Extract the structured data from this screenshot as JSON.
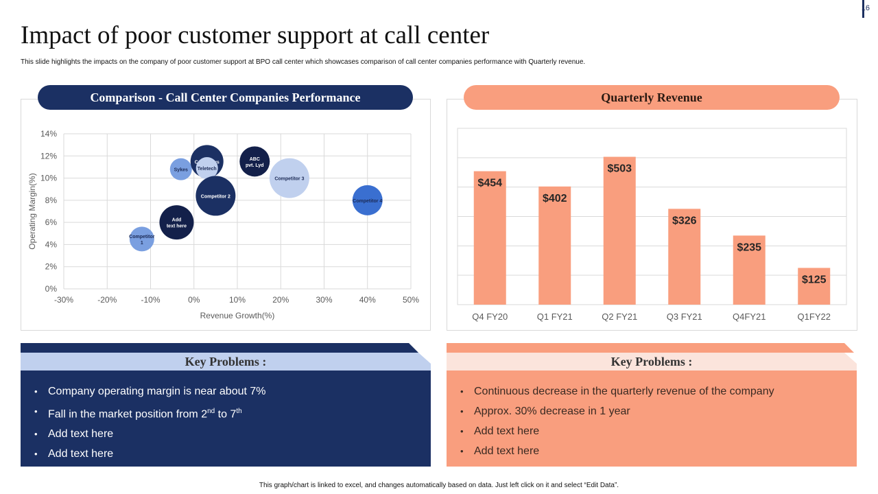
{
  "page_number": "16",
  "title": "Impact of poor customer support at call center",
  "subtitle": "This slide highlights the impacts on the company of poor customer support at BPO  call center which showcases comparison of call center companies performance with Quarterly revenue.",
  "left_panel": {
    "heading": "Comparison - Call Center Companies Performance",
    "key_problems": {
      "heading": "Key Problems :",
      "items": [
        {
          "text": "Company operating margin is near about 7%"
        },
        {
          "text_a": "Fall in the market position from 2",
          "sup_a": "nd",
          "text_b": " to 7",
          "sup_b": "th"
        },
        {
          "text": "Add text here"
        },
        {
          "text": "Add text here"
        }
      ]
    }
  },
  "right_panel": {
    "heading": "Quarterly Revenue",
    "key_problems": {
      "heading": "Key Problems :",
      "items": [
        "Continuous decrease in the quarterly revenue of the company",
        "Approx. 30% decrease in 1 year",
        "Add text here",
        "Add text here"
      ]
    }
  },
  "footer": "This graph/chart is linked to excel, and changes automatically based on data. Just left click on it and select “Edit Data”.",
  "colors": {
    "navy": "#1b3063",
    "salmon": "#f99e7e",
    "light_blue": "#c0d0ee",
    "light_salmon": "#fbe4dc"
  },
  "chart_data": [
    {
      "type": "scatter",
      "variant": "bubble",
      "xlabel": "Revenue  Growth(%)",
      "ylabel": "Operating  Margin(%)",
      "xlim": [
        -30,
        50
      ],
      "ylim": [
        0,
        14
      ],
      "x_ticks": [
        "-30%",
        "-20%",
        "-10%",
        "0%",
        "10%",
        "20%",
        "30%",
        "40%",
        "50%"
      ],
      "y_ticks": [
        "0%",
        "2%",
        "4%",
        "6%",
        "8%",
        "10%",
        "12%",
        "14%"
      ],
      "grid": true,
      "series": [
        {
          "name": "Competitor 1",
          "label": [
            "Competitor",
            "1"
          ],
          "x": -12,
          "y": 4.5,
          "size": 18,
          "color": "#7a9fe0",
          "text_color": "#1b2a55"
        },
        {
          "name": "Add text here",
          "label": [
            "Add",
            "text here"
          ],
          "x": -4,
          "y": 6.0,
          "size": 25,
          "color": "#13204a",
          "text_color": "#ffffff"
        },
        {
          "name": "Sykes",
          "label": [
            "Sykes"
          ],
          "x": -3,
          "y": 10.8,
          "size": 16,
          "color": "#7a9fe0",
          "text_color": "#1b2a55"
        },
        {
          "name": "Convergys",
          "label": [
            "Convergys"
          ],
          "x": 3,
          "y": 11.5,
          "size": 24,
          "color": "#1b3063",
          "text_color": "#ffffff"
        },
        {
          "name": "Teletech",
          "label": [
            "Teletech"
          ],
          "x": 3,
          "y": 10.9,
          "size": 16,
          "color": "#c0d0ee",
          "text_color": "#1b2a55"
        },
        {
          "name": "Competitor 2",
          "label": [
            "Competitor 2"
          ],
          "x": 5,
          "y": 8.4,
          "size": 29,
          "color": "#1b3063",
          "text_color": "#ffffff"
        },
        {
          "name": "ABC pvt. Lyd",
          "label": [
            "ABC",
            "pvt. Lyd"
          ],
          "x": 14,
          "y": 11.5,
          "size": 22,
          "color": "#13204a",
          "text_color": "#ffffff"
        },
        {
          "name": "Competitor 3",
          "label": [
            "Competitor 3"
          ],
          "x": 22,
          "y": 10.0,
          "size": 29,
          "color": "#c0d0ee",
          "text_color": "#1b2a55"
        },
        {
          "name": "Competitor 4",
          "label": [
            "Competitor 4"
          ],
          "x": 40,
          "y": 8.0,
          "size": 22,
          "color": "#3a6fd0",
          "text_color": "#1b2a55"
        }
      ]
    },
    {
      "type": "bar",
      "categories": [
        "Q4 FY20",
        "Q1 FY21",
        "Q2 FY21",
        "Q3 FY21",
        "Q4FY21",
        "Q1FY22"
      ],
      "values": [
        454,
        402,
        503,
        326,
        235,
        125
      ],
      "data_labels": [
        "$454",
        "$402",
        "$503",
        "$326",
        "$235",
        "$125"
      ],
      "ylim": [
        0,
        600
      ],
      "grid": true,
      "bar_color": "#f99e7e"
    }
  ]
}
